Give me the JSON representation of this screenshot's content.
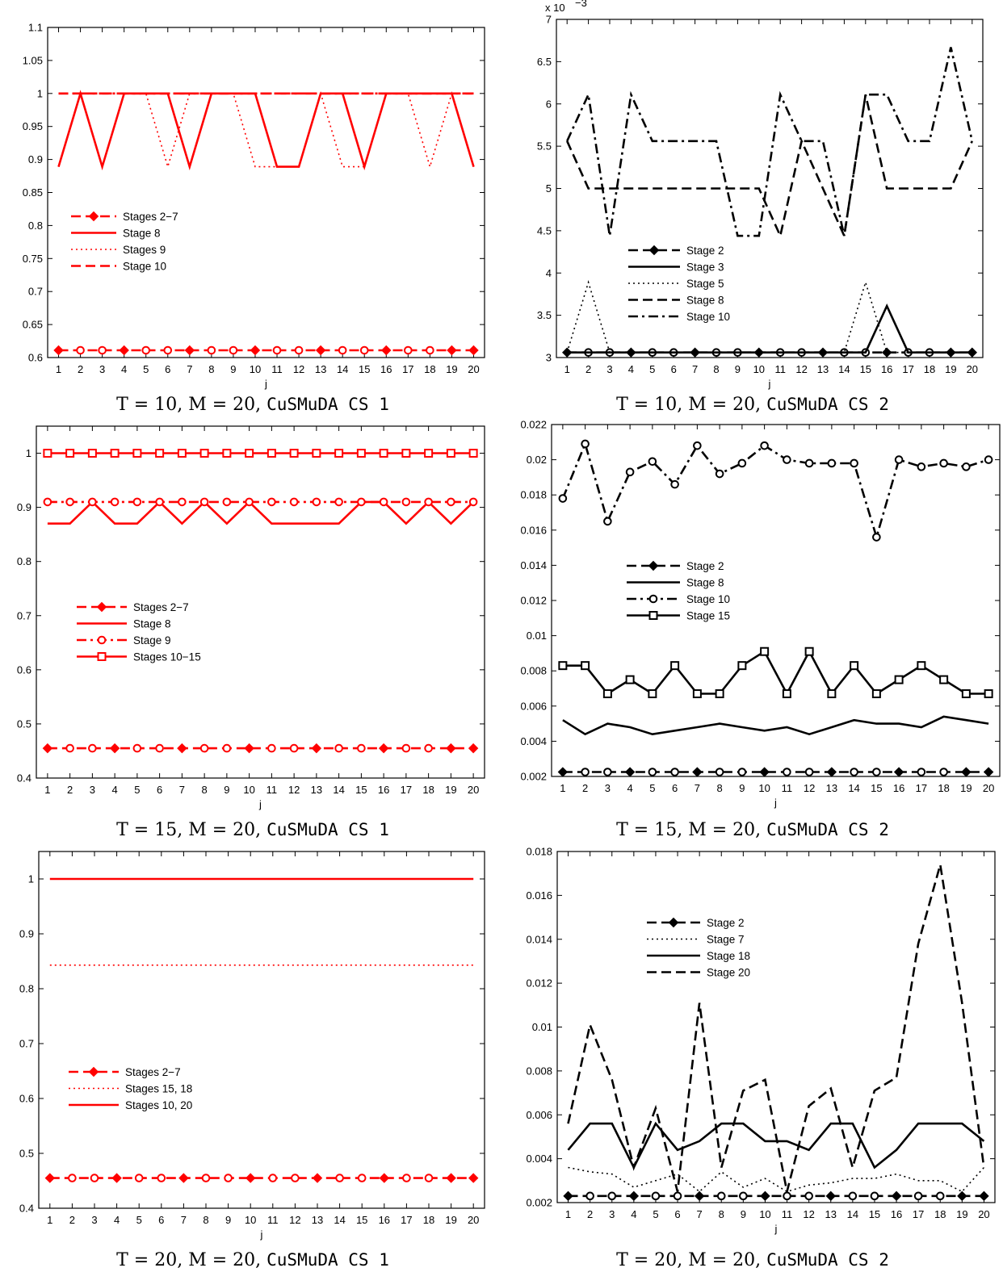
{
  "chart_data": [
    {
      "type": "line",
      "caption": "T = 10, M = 20, CuSMuDA CS 1",
      "xlabel": "j",
      "x": [
        1,
        2,
        3,
        4,
        5,
        6,
        7,
        8,
        9,
        10,
        11,
        12,
        13,
        14,
        15,
        16,
        17,
        18,
        19,
        20
      ],
      "ylim": [
        0.6,
        1.1
      ],
      "yticks": [
        "0.6",
        "0.65",
        "0.7",
        "0.75",
        "0.8",
        "0.85",
        "0.9",
        "0.95",
        "1",
        "1.05",
        "1.1"
      ],
      "series": [
        {
          "name": "Stages 2−7",
          "color": "#ff0000",
          "style": "dash",
          "marker": "diamond",
          "values": [
            0.611,
            0.611,
            0.611,
            0.611,
            0.611,
            0.611,
            0.611,
            0.611,
            0.611,
            0.611,
            0.611,
            0.611,
            0.611,
            0.611,
            0.611,
            0.611,
            0.611,
            0.611,
            0.611,
            0.611
          ]
        },
        {
          "name": "Stage 8",
          "color": "#ff0000",
          "style": "solid",
          "marker": "none",
          "values": [
            0.889,
            1,
            0.889,
            1,
            1,
            1,
            0.889,
            1,
            1,
            1,
            0.889,
            0.889,
            1,
            1,
            0.889,
            1,
            1,
            1,
            1,
            0.889
          ]
        },
        {
          "name": "Stages 9",
          "color": "#ff0000",
          "style": "dot",
          "marker": "none",
          "values": [
            0.889,
            1,
            0.889,
            1,
            1,
            0.889,
            1,
            1,
            1,
            0.889,
            0.889,
            0.889,
            1,
            0.889,
            0.889,
            1,
            1,
            0.889,
            1,
            0.889
          ]
        },
        {
          "name": "Stage 10",
          "color": "#ff0000",
          "style": "dash",
          "marker": "none",
          "values": [
            1,
            1,
            1,
            1,
            1,
            1,
            1,
            1,
            1,
            1,
            1,
            1,
            1,
            1,
            1,
            1,
            1,
            1,
            1,
            1
          ]
        },
        {
          "name": "",
          "color": "#ff0000",
          "style": "dashdot",
          "marker": "none",
          "values": [
            1,
            1,
            1,
            1,
            1,
            1,
            1,
            1,
            1,
            1,
            1,
            1,
            1,
            1,
            1,
            1,
            1,
            1,
            1,
            1
          ]
        }
      ]
    },
    {
      "type": "line",
      "caption": "T = 10, M = 20, CuSMuDA CS 2",
      "xlabel": "j",
      "exponent_label": "x 10",
      "exponent_power": "−3",
      "x": [
        1,
        2,
        3,
        4,
        5,
        6,
        7,
        8,
        9,
        10,
        11,
        12,
        13,
        14,
        15,
        16,
        17,
        18,
        19,
        20
      ],
      "ylim": [
        3,
        7
      ],
      "yticks": [
        "3",
        "3.5",
        "4",
        "4.5",
        "5",
        "5.5",
        "6",
        "6.5",
        "7"
      ],
      "series": [
        {
          "name": "Stage 2",
          "color": "#000000",
          "style": "dash",
          "marker": "diamond",
          "values": [
            3.06,
            3.06,
            3.06,
            3.06,
            3.06,
            3.06,
            3.06,
            3.06,
            3.06,
            3.06,
            3.06,
            3.06,
            3.06,
            3.06,
            3.06,
            3.06,
            3.06,
            3.06,
            3.06,
            3.06
          ]
        },
        {
          "name": "Stage 3",
          "color": "#000000",
          "style": "solid",
          "marker": "none",
          "values": [
            3.06,
            3.06,
            3.06,
            3.06,
            3.06,
            3.06,
            3.06,
            3.06,
            3.06,
            3.06,
            3.06,
            3.06,
            3.06,
            3.06,
            3.06,
            3.61,
            3.06,
            3.06,
            3.06,
            3.06
          ]
        },
        {
          "name": "Stage 5",
          "color": "#000000",
          "style": "dot",
          "marker": "none",
          "values": [
            3.06,
            3.89,
            3.06,
            3.06,
            3.06,
            3.06,
            3.06,
            3.06,
            3.06,
            3.06,
            3.06,
            3.06,
            3.06,
            3.06,
            3.89,
            3.06,
            3.06,
            3.06,
            3.06,
            3.06
          ]
        },
        {
          "name": "Stage 8",
          "color": "#000000",
          "style": "dash",
          "marker": "none",
          "values": [
            5.56,
            5.0,
            5.0,
            5.0,
            5.0,
            5.0,
            5.0,
            5.0,
            5.0,
            5.0,
            4.44,
            5.56,
            5.0,
            4.44,
            6.11,
            5.0,
            5.0,
            5.0,
            5.0,
            5.56
          ]
        },
        {
          "name": "Stage 10",
          "color": "#000000",
          "style": "dashdot",
          "marker": "none",
          "values": [
            5.56,
            6.11,
            4.44,
            6.11,
            5.56,
            5.56,
            5.56,
            5.56,
            4.44,
            4.44,
            6.11,
            5.56,
            5.56,
            4.44,
            6.11,
            6.11,
            5.56,
            5.56,
            6.67,
            5.56
          ]
        }
      ]
    },
    {
      "type": "line",
      "caption": "T = 15, M = 20, CuSMuDA CS 1",
      "xlabel": "j",
      "x": [
        1,
        2,
        3,
        4,
        5,
        6,
        7,
        8,
        9,
        10,
        11,
        12,
        13,
        14,
        15,
        16,
        17,
        18,
        19,
        20
      ],
      "ylim": [
        0.4,
        1.05
      ],
      "yticks": [
        "0.4",
        "0.5",
        "0.6",
        "0.7",
        "0.8",
        "0.9",
        "1"
      ],
      "ytick_values": [
        0.4,
        0.5,
        0.6,
        0.7,
        0.8,
        0.9,
        1.0
      ],
      "series": [
        {
          "name": "Stages 2−7",
          "color": "#ff0000",
          "style": "dash",
          "marker": "diamond",
          "values": [
            0.455,
            0.455,
            0.455,
            0.455,
            0.455,
            0.455,
            0.455,
            0.455,
            0.455,
            0.455,
            0.455,
            0.455,
            0.455,
            0.455,
            0.455,
            0.455,
            0.455,
            0.455,
            0.455,
            0.455
          ]
        },
        {
          "name": "Stage 8",
          "color": "#ff0000",
          "style": "solid",
          "marker": "none",
          "values": [
            0.87,
            0.87,
            0.91,
            0.87,
            0.87,
            0.91,
            0.87,
            0.91,
            0.87,
            0.91,
            0.87,
            0.87,
            0.87,
            0.87,
            0.91,
            0.91,
            0.87,
            0.91,
            0.87,
            0.91
          ]
        },
        {
          "name": "Stage 9",
          "color": "#ff0000",
          "style": "dashdot",
          "marker": "circle",
          "values": [
            0.91,
            0.91,
            0.91,
            0.91,
            0.91,
            0.91,
            0.91,
            0.91,
            0.91,
            0.91,
            0.91,
            0.91,
            0.91,
            0.91,
            0.91,
            0.91,
            0.91,
            0.91,
            0.91,
            0.91
          ]
        },
        {
          "name": "Stages 10−15",
          "color": "#ff0000",
          "style": "solid",
          "marker": "square",
          "values": [
            1,
            1,
            1,
            1,
            1,
            1,
            1,
            1,
            1,
            1,
            1,
            1,
            1,
            1,
            1,
            1,
            1,
            1,
            1,
            1
          ]
        }
      ]
    },
    {
      "type": "line",
      "caption": "T = 15, M = 20, CuSMuDA CS 2",
      "xlabel": "j",
      "x": [
        1,
        2,
        3,
        4,
        5,
        6,
        7,
        8,
        9,
        10,
        11,
        12,
        13,
        14,
        15,
        16,
        17,
        18,
        19,
        20
      ],
      "ylim": [
        0.002,
        0.022
      ],
      "yticks": [
        "0.002",
        "0.004",
        "0.006",
        "0.008",
        "0.01",
        "0.012",
        "0.014",
        "0.016",
        "0.018",
        "0.02",
        "0.022"
      ],
      "series": [
        {
          "name": "Stage 2",
          "color": "#000000",
          "style": "dash",
          "marker": "diamond",
          "values": [
            0.00225,
            0.00225,
            0.00225,
            0.00225,
            0.00225,
            0.00225,
            0.00225,
            0.00225,
            0.00225,
            0.00225,
            0.00225,
            0.00225,
            0.00225,
            0.00225,
            0.00225,
            0.00225,
            0.00225,
            0.00225,
            0.00225,
            0.00225
          ]
        },
        {
          "name": "Stage 8",
          "color": "#000000",
          "style": "solid",
          "marker": "none",
          "values": [
            0.0052,
            0.0044,
            0.005,
            0.0048,
            0.0044,
            0.0046,
            0.0048,
            0.005,
            0.0048,
            0.0046,
            0.0048,
            0.0044,
            0.0048,
            0.0052,
            0.005,
            0.005,
            0.0048,
            0.0054,
            0.0052,
            0.005
          ]
        },
        {
          "name": "Stage 10",
          "color": "#000000",
          "style": "dashdot",
          "marker": "circle",
          "values": [
            0.0178,
            0.0209,
            0.0165,
            0.0193,
            0.0199,
            0.0186,
            0.0208,
            0.0192,
            0.0198,
            0.0208,
            0.02,
            0.0198,
            0.0198,
            0.0198,
            0.0156,
            0.02,
            0.0196,
            0.0198,
            0.0196,
            0.02
          ]
        },
        {
          "name": "Stage 15",
          "color": "#000000",
          "style": "solid",
          "marker": "square",
          "values": [
            0.0083,
            0.0083,
            0.0067,
            0.0075,
            0.0067,
            0.0083,
            0.0067,
            0.0067,
            0.0083,
            0.0091,
            0.0067,
            0.0091,
            0.0067,
            0.0083,
            0.0067,
            0.0075,
            0.0083,
            0.0075,
            0.0067,
            0.0067
          ]
        }
      ]
    },
    {
      "type": "line",
      "caption": "T = 20, M = 20, CuSMuDA CS 1",
      "xlabel": "j",
      "x": [
        1,
        2,
        3,
        4,
        5,
        6,
        7,
        8,
        9,
        10,
        11,
        12,
        13,
        14,
        15,
        16,
        17,
        18,
        19,
        20
      ],
      "ylim": [
        0.4,
        1.05
      ],
      "yticks": [
        "0.4",
        "0.5",
        "0.6",
        "0.7",
        "0.8",
        "0.9",
        "1"
      ],
      "ytick_values": [
        0.4,
        0.5,
        0.6,
        0.7,
        0.8,
        0.9,
        1.0
      ],
      "series": [
        {
          "name": "Stages 2−7",
          "color": "#ff0000",
          "style": "dash",
          "marker": "diamond",
          "values": [
            0.455,
            0.455,
            0.455,
            0.455,
            0.455,
            0.455,
            0.455,
            0.455,
            0.455,
            0.455,
            0.455,
            0.455,
            0.455,
            0.455,
            0.455,
            0.455,
            0.455,
            0.455,
            0.455,
            0.455
          ]
        },
        {
          "name": "Stages 15, 18",
          "color": "#ff0000",
          "style": "dot",
          "marker": "none",
          "values": [
            0.843,
            0.843,
            0.843,
            0.843,
            0.843,
            0.843,
            0.843,
            0.843,
            0.843,
            0.843,
            0.843,
            0.843,
            0.843,
            0.843,
            0.843,
            0.843,
            0.843,
            0.843,
            0.843,
            0.843
          ]
        },
        {
          "name": "Stages 10, 20",
          "color": "#ff0000",
          "style": "solid",
          "marker": "none",
          "values": [
            1,
            1,
            1,
            1,
            1,
            1,
            1,
            1,
            1,
            1,
            1,
            1,
            1,
            1,
            1,
            1,
            1,
            1,
            1,
            1
          ]
        }
      ]
    },
    {
      "type": "line",
      "caption": "T = 20, M = 20, CuSMuDA CS 2",
      "xlabel": "j",
      "x": [
        1,
        2,
        3,
        4,
        5,
        6,
        7,
        8,
        9,
        10,
        11,
        12,
        13,
        14,
        15,
        16,
        17,
        18,
        19,
        20
      ],
      "ylim": [
        0.002,
        0.018
      ],
      "yticks": [
        "0.002",
        "0.004",
        "0.006",
        "0.008",
        "0.01",
        "0.012",
        "0.014",
        "0.016",
        "0.018"
      ],
      "series": [
        {
          "name": "Stage 2",
          "color": "#000000",
          "style": "dash",
          "marker": "diamond",
          "values": [
            0.0023,
            0.0023,
            0.0023,
            0.0023,
            0.0023,
            0.0023,
            0.0023,
            0.0023,
            0.0023,
            0.0023,
            0.0023,
            0.0023,
            0.0023,
            0.0023,
            0.0023,
            0.0023,
            0.0023,
            0.0023,
            0.0023,
            0.0023
          ]
        },
        {
          "name": "Stage 7",
          "color": "#000000",
          "style": "dot",
          "marker": "none",
          "values": [
            0.0036,
            0.0034,
            0.0033,
            0.0027,
            0.003,
            0.0033,
            0.0025,
            0.0034,
            0.0027,
            0.0031,
            0.0025,
            0.0028,
            0.0029,
            0.0031,
            0.0031,
            0.0033,
            0.003,
            0.003,
            0.0025,
            0.0036
          ]
        },
        {
          "name": "Stage 18",
          "color": "#000000",
          "style": "solid",
          "marker": "none",
          "values": [
            0.0044,
            0.0056,
            0.0056,
            0.0036,
            0.0056,
            0.0044,
            0.0048,
            0.0056,
            0.0056,
            0.0048,
            0.0048,
            0.0044,
            0.0056,
            0.0056,
            0.0036,
            0.0044,
            0.0056,
            0.0056,
            0.0056,
            0.0048
          ]
        },
        {
          "name": "Stage 20",
          "color": "#000000",
          "style": "dash",
          "marker": "none",
          "values": [
            0.0056,
            0.0101,
            0.0076,
            0.0036,
            0.0063,
            0.0025,
            0.0111,
            0.0036,
            0.0071,
            0.0076,
            0.0025,
            0.0064,
            0.0072,
            0.0036,
            0.0071,
            0.0077,
            0.0138,
            0.0174,
            0.0111,
            0.0036
          ]
        }
      ]
    }
  ]
}
